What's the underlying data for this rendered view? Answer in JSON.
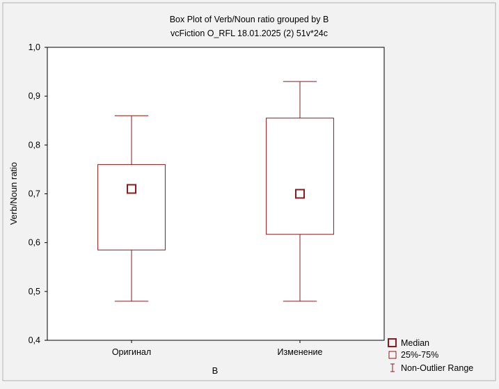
{
  "chart_data": {
    "type": "boxplot",
    "title": "Box Plot of Verb/Noun ratio grouped by  B",
    "subtitle": "vcFiction O_RFL 18.01.2025 (2) 51v*24c",
    "xlabel": "B",
    "ylabel": "Verb/Noun ratio",
    "ylim": [
      0.4,
      1.0
    ],
    "yticks": [
      "0,4",
      "0,5",
      "0,6",
      "0,7",
      "0,8",
      "0,9",
      "1,0"
    ],
    "categories": [
      "Оригинал",
      "Изменение"
    ],
    "boxes": [
      {
        "min": 0.48,
        "q1": 0.585,
        "median": 0.71,
        "q3": 0.76,
        "max": 0.86
      },
      {
        "min": 0.48,
        "q1": 0.617,
        "median": 0.7,
        "q3": 0.855,
        "max": 0.93
      }
    ],
    "legend": {
      "position": "bottom-right",
      "items": [
        "Median",
        "25%-75%",
        "Non-Outlier Range"
      ]
    },
    "colors": {
      "box": "#8b1a1a",
      "plot_bg": "#ffffff",
      "page_bg": "#f2f2f2"
    }
  }
}
